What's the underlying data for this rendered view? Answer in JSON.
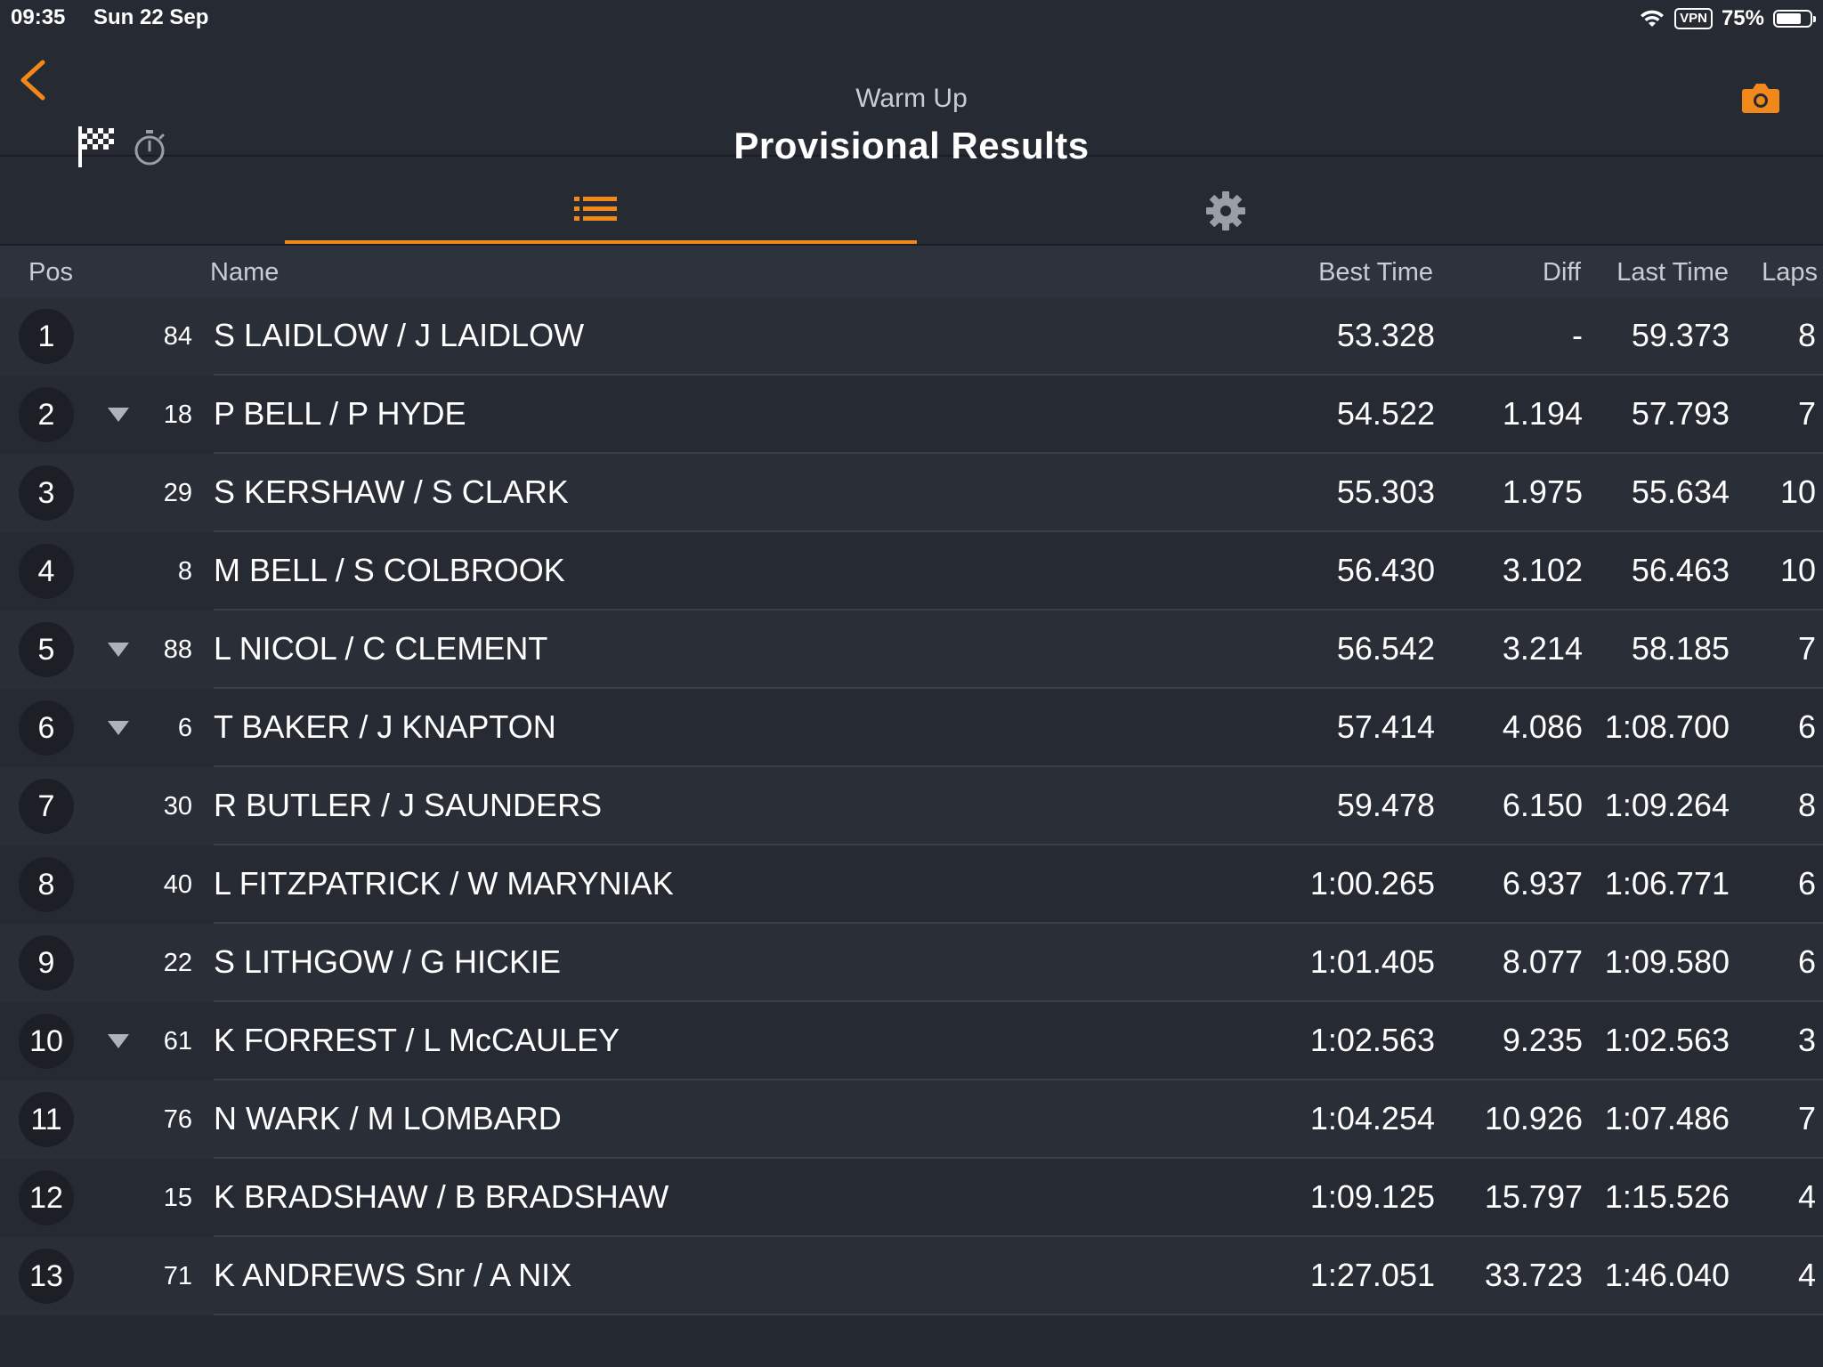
{
  "status_bar": {
    "time": "09:35",
    "date": "Sun 22 Sep",
    "vpn": "VPN",
    "battery": "75%",
    "battery_level": 0.75
  },
  "header": {
    "subtitle": "Warm Up",
    "title": "Provisional Results",
    "accent_color": "#f0891a"
  },
  "columns": {
    "pos": "Pos",
    "name": "Name",
    "best_time": "Best Time",
    "diff": "Diff",
    "last_time": "Last Time",
    "laps": "Laps"
  },
  "results": [
    {
      "pos": "1",
      "trend": "",
      "number": "84",
      "name": "S LAIDLOW / J LAIDLOW",
      "best": "53.328",
      "diff": "-",
      "last": "59.373",
      "laps": "8"
    },
    {
      "pos": "2",
      "trend": "down",
      "number": "18",
      "name": "P BELL / P HYDE",
      "best": "54.522",
      "diff": "1.194",
      "last": "57.793",
      "laps": "7"
    },
    {
      "pos": "3",
      "trend": "",
      "number": "29",
      "name": "S KERSHAW / S CLARK",
      "best": "55.303",
      "diff": "1.975",
      "last": "55.634",
      "laps": "10"
    },
    {
      "pos": "4",
      "trend": "",
      "number": "8",
      "name": "M BELL / S COLBROOK",
      "best": "56.430",
      "diff": "3.102",
      "last": "56.463",
      "laps": "10"
    },
    {
      "pos": "5",
      "trend": "down",
      "number": "88",
      "name": "L NICOL / C CLEMENT",
      "best": "56.542",
      "diff": "3.214",
      "last": "58.185",
      "laps": "7"
    },
    {
      "pos": "6",
      "trend": "down",
      "number": "6",
      "name": "T BAKER / J KNAPTON",
      "best": "57.414",
      "diff": "4.086",
      "last": "1:08.700",
      "laps": "6"
    },
    {
      "pos": "7",
      "trend": "",
      "number": "30",
      "name": "R BUTLER / J SAUNDERS",
      "best": "59.478",
      "diff": "6.150",
      "last": "1:09.264",
      "laps": "8"
    },
    {
      "pos": "8",
      "trend": "",
      "number": "40",
      "name": "L FITZPATRICK / W MARYNIAK",
      "best": "1:00.265",
      "diff": "6.937",
      "last": "1:06.771",
      "laps": "6"
    },
    {
      "pos": "9",
      "trend": "",
      "number": "22",
      "name": "S LITHGOW / G HICKIE",
      "best": "1:01.405",
      "diff": "8.077",
      "last": "1:09.580",
      "laps": "6"
    },
    {
      "pos": "10",
      "trend": "down",
      "number": "61",
      "name": "K FORREST / L McCAULEY",
      "best": "1:02.563",
      "diff": "9.235",
      "last": "1:02.563",
      "laps": "3"
    },
    {
      "pos": "11",
      "trend": "",
      "number": "76",
      "name": "N WARK / M LOMBARD",
      "best": "1:04.254",
      "diff": "10.926",
      "last": "1:07.486",
      "laps": "7"
    },
    {
      "pos": "12",
      "trend": "",
      "number": "15",
      "name": "K BRADSHAW / B BRADSHAW",
      "best": "1:09.125",
      "diff": "15.797",
      "last": "1:15.526",
      "laps": "4"
    },
    {
      "pos": "13",
      "trend": "",
      "number": "71",
      "name": "K ANDREWS Snr /  A NIX",
      "best": "1:27.051",
      "diff": "33.723",
      "last": "1:46.040",
      "laps": "4"
    }
  ]
}
